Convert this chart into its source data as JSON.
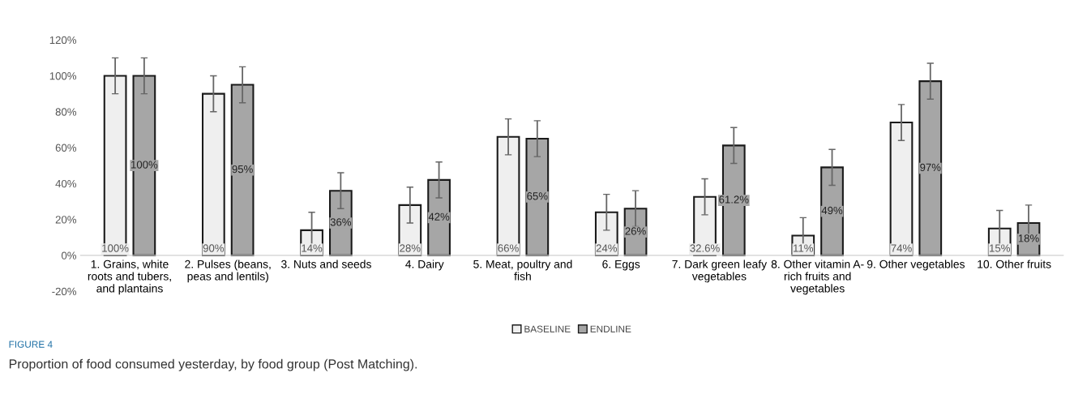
{
  "chart_data": {
    "type": "bar",
    "categories": [
      "1. Grains, white\nroots and tubers,\nand plantains",
      "2. Pulses (beans,\npeas and lentils)",
      "3. Nuts and seeds",
      "4. Dairy",
      "5. Meat, poultry and\nfish",
      "6. Eggs",
      "7. Dark green leafy\nvegetables",
      "8. Other vitamin A-\nrich fruits and\nvegetables",
      "9. Other vegetables",
      "10. Other fruits"
    ],
    "series": [
      {
        "name": "BASELINE",
        "color": "#efefef",
        "values": [
          100,
          90,
          14,
          28,
          66,
          24,
          32.6,
          11,
          74,
          15
        ],
        "errors": [
          10,
          10,
          10,
          10,
          10,
          10,
          10,
          10,
          10,
          10
        ],
        "value_labels": [
          "100%",
          "90%",
          "14%",
          "28%",
          "66%",
          "24%",
          "32.6%",
          "11%",
          "74%",
          "15%"
        ]
      },
      {
        "name": "ENDLINE",
        "color": "#a6a6a6",
        "values": [
          100,
          95,
          36,
          42,
          65,
          26,
          61.2,
          49,
          97,
          18
        ],
        "errors": [
          10,
          10,
          10,
          10,
          10,
          10,
          10,
          10,
          10,
          10
        ],
        "value_labels": [
          "100%",
          "95%",
          "36%",
          "42%",
          "65%",
          "26%",
          "61.2%",
          "49%",
          "97%",
          "18%"
        ]
      }
    ],
    "ylim": [
      -20,
      120
    ],
    "yticks": [
      {
        "value": -20,
        "label": "-20%"
      },
      {
        "value": 0,
        "label": "0%"
      },
      {
        "value": 20,
        "label": "20%"
      },
      {
        "value": 40,
        "label": "40%"
      },
      {
        "value": 60,
        "label": "60%"
      },
      {
        "value": 80,
        "label": "80%"
      },
      {
        "value": 100,
        "label": "100%"
      },
      {
        "value": 120,
        "label": "120%"
      }
    ],
    "grid": false,
    "legend": "bottom",
    "annotations": [
      "FIGURE 4",
      "Proportion of food consumed yesterday, by food group (Post Matching)."
    ]
  }
}
